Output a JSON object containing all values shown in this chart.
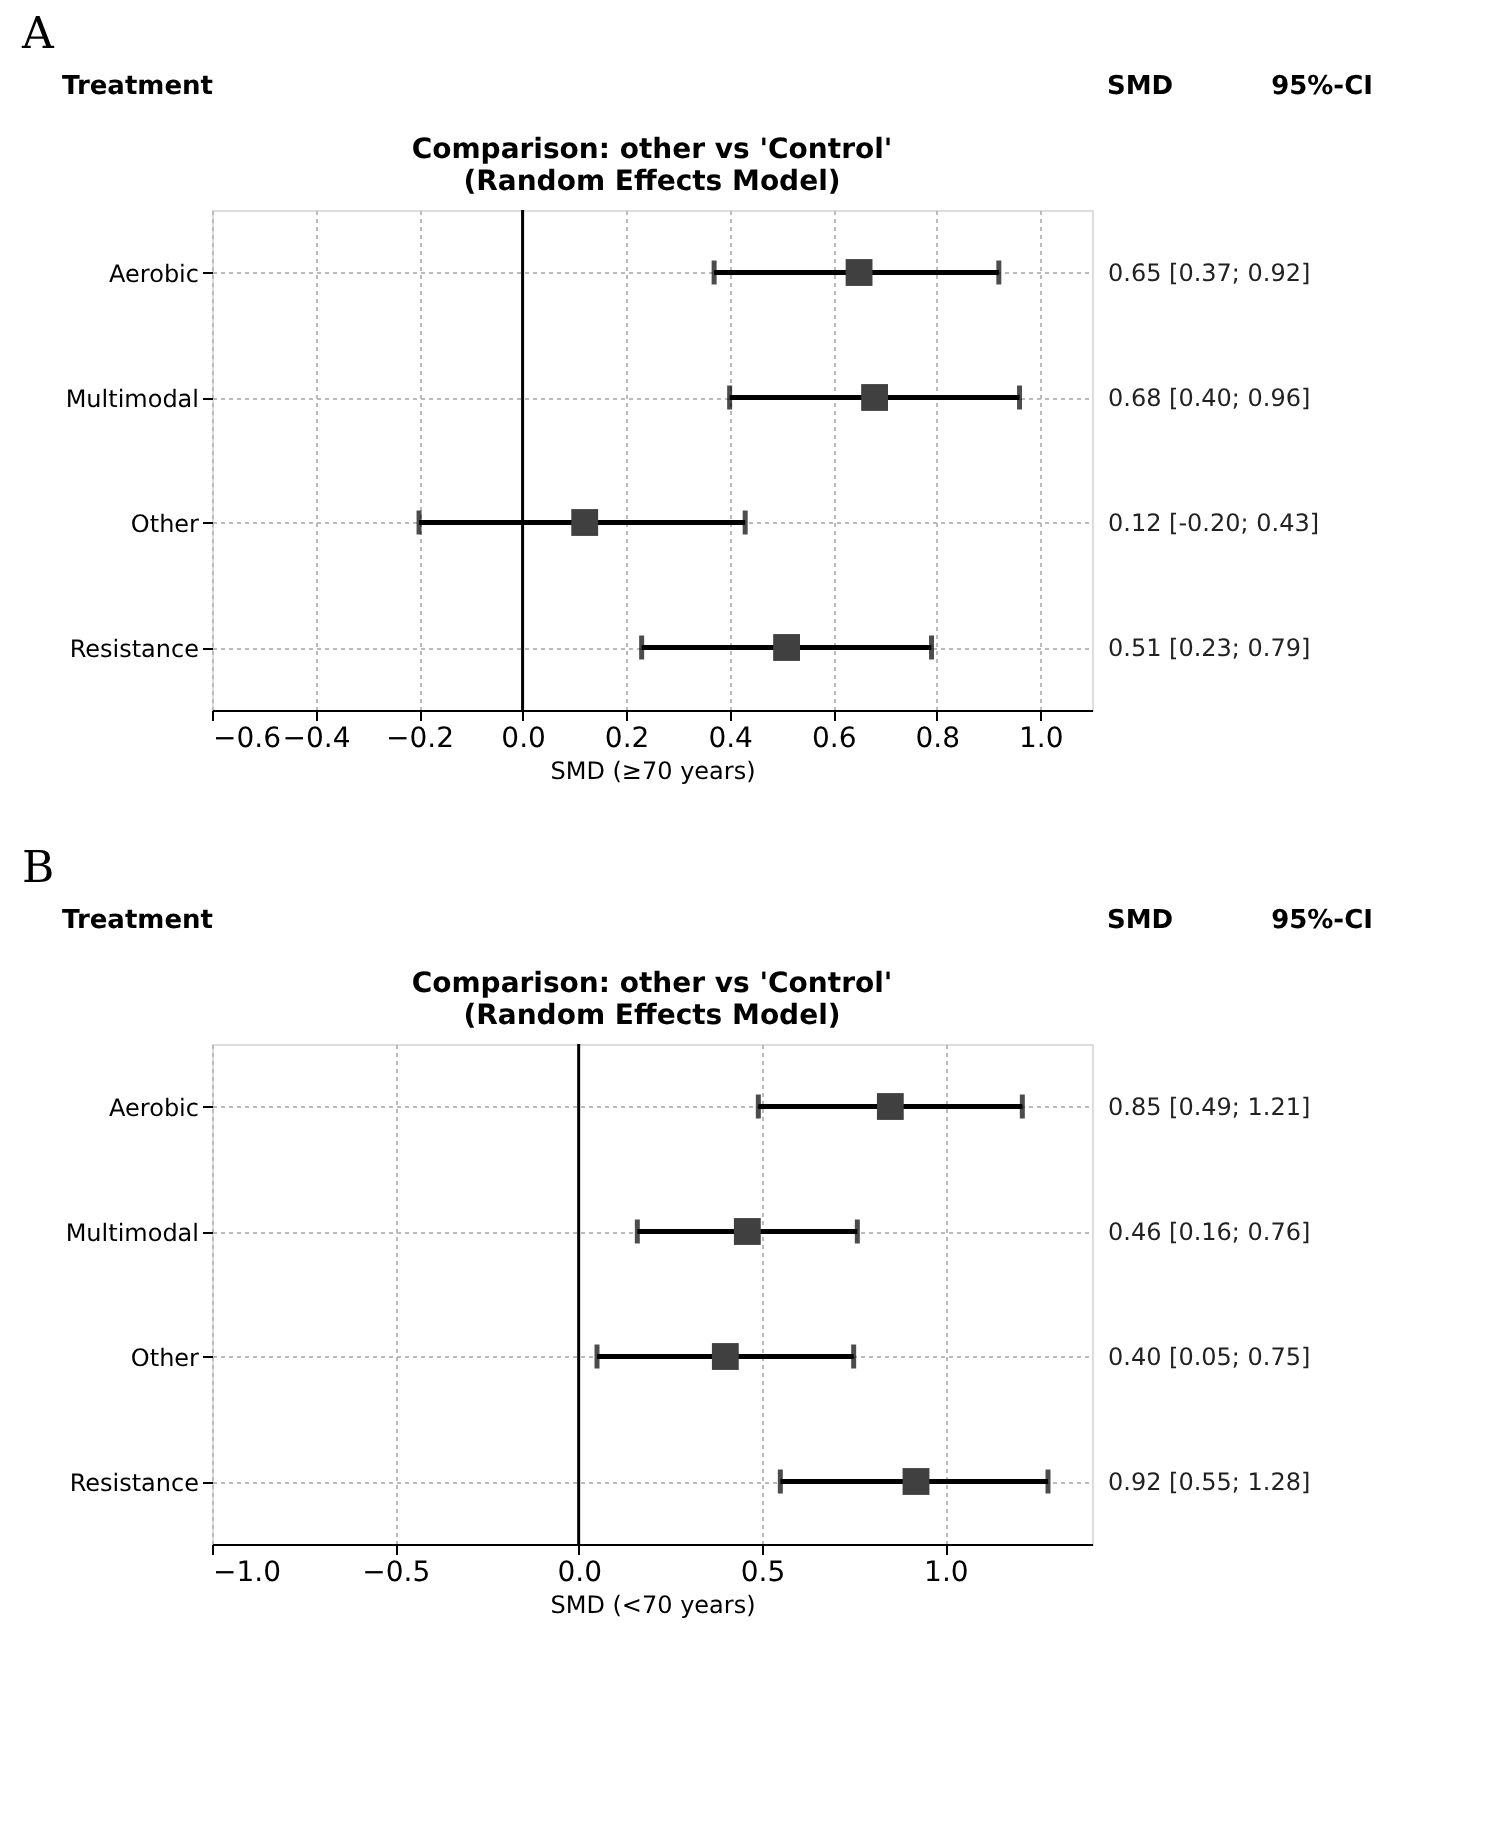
{
  "chart_data": [
    {
      "type": "scatter",
      "orientation": "horizontal",
      "title": "Comparison: other vs 'Control'\n(Random Effects Model)",
      "xlabel": "SMD (≥70 years)",
      "annotations": [
        "A",
        "Treatment",
        "SMD",
        "95%-CI"
      ],
      "categories": [
        "Aerobic",
        "Multimodal",
        "Other",
        "Resistance"
      ],
      "series": [
        {
          "color": "#404040",
          "values": [
            0.65,
            0.68,
            0.12,
            0.51
          ],
          "errors": [
            [
              0.37,
              0.92
            ],
            [
              0.4,
              0.96
            ],
            [
              -0.2,
              0.43
            ],
            [
              0.23,
              0.79
            ]
          ],
          "value_labels": [
            "0.65  [0.37; 0.92]",
            "0.68  [0.40; 0.96]",
            "0.12  [-0.20; 0.43]",
            "0.51  [0.23; 0.79]"
          ]
        }
      ],
      "xlim": [
        -0.6,
        1.1
      ],
      "xticks": [
        {
          "value": -0.6,
          "label": "−0.6"
        },
        {
          "value": -0.4,
          "label": "−0.4"
        },
        {
          "value": -0.2,
          "label": "−0.2"
        },
        {
          "value": 0,
          "label": "0.0"
        },
        {
          "value": 0.2,
          "label": "0.2"
        },
        {
          "value": 0.4,
          "label": "0.4"
        },
        {
          "value": 0.6,
          "label": "0.6"
        },
        {
          "value": 0.8,
          "label": "0.8"
        },
        {
          "value": 1,
          "label": "1.0"
        }
      ],
      "ref_lines": [
        {
          "axis": "x",
          "value": 0,
          "color": "#000000"
        }
      ],
      "marker": "square",
      "grid": true
    },
    {
      "type": "scatter",
      "orientation": "horizontal",
      "title": "Comparison: other vs 'Control'\n(Random Effects Model)",
      "xlabel": "SMD (<70 years)",
      "annotations": [
        "B",
        "Treatment",
        "SMD",
        "95%-CI"
      ],
      "categories": [
        "Aerobic",
        "Multimodal",
        "Other",
        "Resistance"
      ],
      "series": [
        {
          "color": "#404040",
          "values": [
            0.85,
            0.46,
            0.4,
            0.92
          ],
          "errors": [
            [
              0.49,
              1.21
            ],
            [
              0.16,
              0.76
            ],
            [
              0.05,
              0.75
            ],
            [
              0.55,
              1.28
            ]
          ],
          "value_labels": [
            "0.85  [0.49; 1.21]",
            "0.46  [0.16; 0.76]",
            "0.40  [0.05; 0.75]",
            "0.92  [0.55; 1.28]"
          ]
        }
      ],
      "xlim": [
        -1.0,
        1.4
      ],
      "xticks": [
        {
          "value": -1,
          "label": "−1.0"
        },
        {
          "value": -0.5,
          "label": "−0.5"
        },
        {
          "value": 0,
          "label": "0.0"
        },
        {
          "value": 0.5,
          "label": "0.5"
        },
        {
          "value": 1,
          "label": "1.0"
        }
      ],
      "ref_lines": [
        {
          "axis": "x",
          "value": 0,
          "color": "#000000"
        }
      ],
      "marker": "square",
      "grid": true
    }
  ]
}
